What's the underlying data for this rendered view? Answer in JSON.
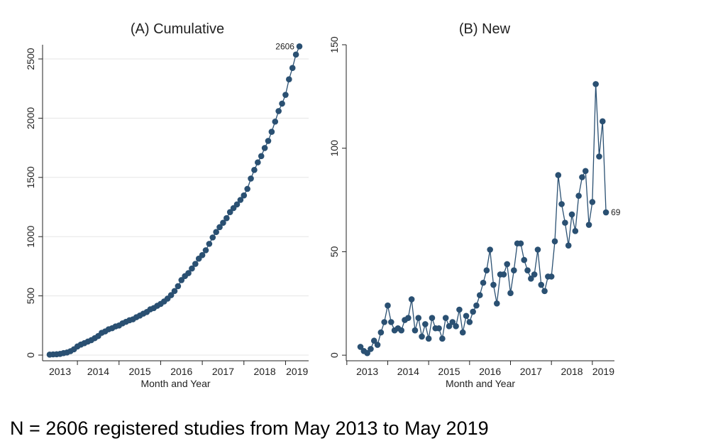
{
  "charts": [
    {
      "type": "line",
      "title": "(A) Cumulative",
      "x_label": "Month and Year",
      "color": "#2a5072",
      "grid": true,
      "xlim": [
        2013.163,
        2019.555
      ],
      "xticks": [
        2013,
        2014,
        2015,
        2016,
        2017,
        2018,
        2019
      ],
      "ylim": [
        -48,
        2620
      ],
      "yticks": [
        0,
        500,
        1000,
        1500,
        2000,
        2500
      ],
      "annotation": "2606",
      "values": [
        4,
        6,
        7,
        10,
        17,
        22,
        33,
        49,
        73,
        89,
        101,
        114,
        126,
        143,
        161,
        188,
        200,
        218,
        227,
        242,
        250,
        268,
        281,
        294,
        302,
        320,
        334,
        350,
        364,
        386,
        397,
        416,
        432,
        453,
        477,
        506,
        541,
        582,
        633,
        667,
        692,
        731,
        770,
        814,
        844,
        885,
        939,
        993,
        1039,
        1080,
        1117,
        1156,
        1207,
        1241,
        1272,
        1310,
        1348,
        1403,
        1490,
        1563,
        1627,
        1680,
        1748,
        1808,
        1885,
        1971,
        2060,
        2123,
        2197,
        2328,
        2424,
        2537,
        2606
      ]
    },
    {
      "type": "line",
      "title": "(B) New",
      "x_label": "Month and Year",
      "color": "#2a5072",
      "grid": false,
      "xlim": [
        2012.986,
        2019.54
      ],
      "xticks": [
        2013,
        2014,
        2015,
        2016,
        2017,
        2018,
        2019
      ],
      "ylim": [
        -2.7,
        150
      ],
      "yticks": [
        0,
        50,
        100,
        150
      ],
      "annotation": "69",
      "values": [
        4,
        2,
        1,
        3,
        7,
        5,
        11,
        16,
        24,
        16,
        12,
        13,
        12,
        17,
        18,
        27,
        12,
        18,
        9,
        15,
        8,
        18,
        13,
        13,
        8,
        18,
        14,
        16,
        14,
        22,
        11,
        19,
        16,
        21,
        24,
        29,
        35,
        41,
        51,
        34,
        25,
        39,
        39,
        44,
        30,
        41,
        54,
        54,
        46,
        41,
        37,
        39,
        51,
        34,
        31,
        38,
        38,
        55,
        87,
        73,
        64,
        53,
        68,
        60,
        77,
        86,
        89,
        63,
        74,
        131,
        96,
        113,
        69
      ]
    }
  ],
  "caption": "N = 2606 registered studies from May 2013 to May 2019"
}
